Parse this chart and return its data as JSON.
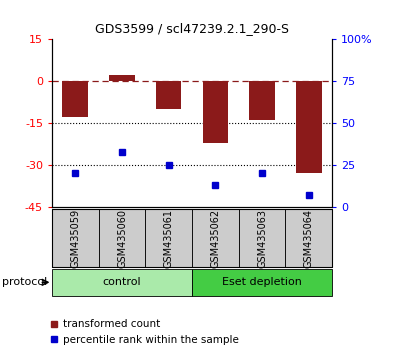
{
  "title": "GDS3599 / scl47239.2.1_290-S",
  "samples": [
    "GSM435059",
    "GSM435060",
    "GSM435061",
    "GSM435062",
    "GSM435063",
    "GSM435064"
  ],
  "red_values": [
    -13,
    2,
    -10,
    -22,
    -14,
    -33
  ],
  "blue_percentiles": [
    20,
    33,
    25,
    13,
    20,
    7
  ],
  "ylim_left": [
    -45,
    15
  ],
  "ylim_right": [
    0,
    100
  ],
  "left_ticks": [
    -45,
    -30,
    -15,
    0,
    15
  ],
  "right_ticks": [
    0,
    25,
    50,
    75,
    100
  ],
  "right_tick_labels": [
    "0",
    "25",
    "50",
    "75",
    "100%"
  ],
  "hlines": [
    -15,
    -30
  ],
  "hline_zero": 0,
  "bar_color": "#8B1A1A",
  "dot_color": "#0000CC",
  "control_color": "#AAEAAA",
  "depletion_color": "#44CC44",
  "control_label": "control",
  "depletion_label": "Eset depletion",
  "protocol_label": "protocol",
  "legend_red": "transformed count",
  "legend_blue": "percentile rank within the sample",
  "bar_width": 0.55,
  "bg_color": "#FFFFFF",
  "sample_box_color": "#CCCCCC"
}
